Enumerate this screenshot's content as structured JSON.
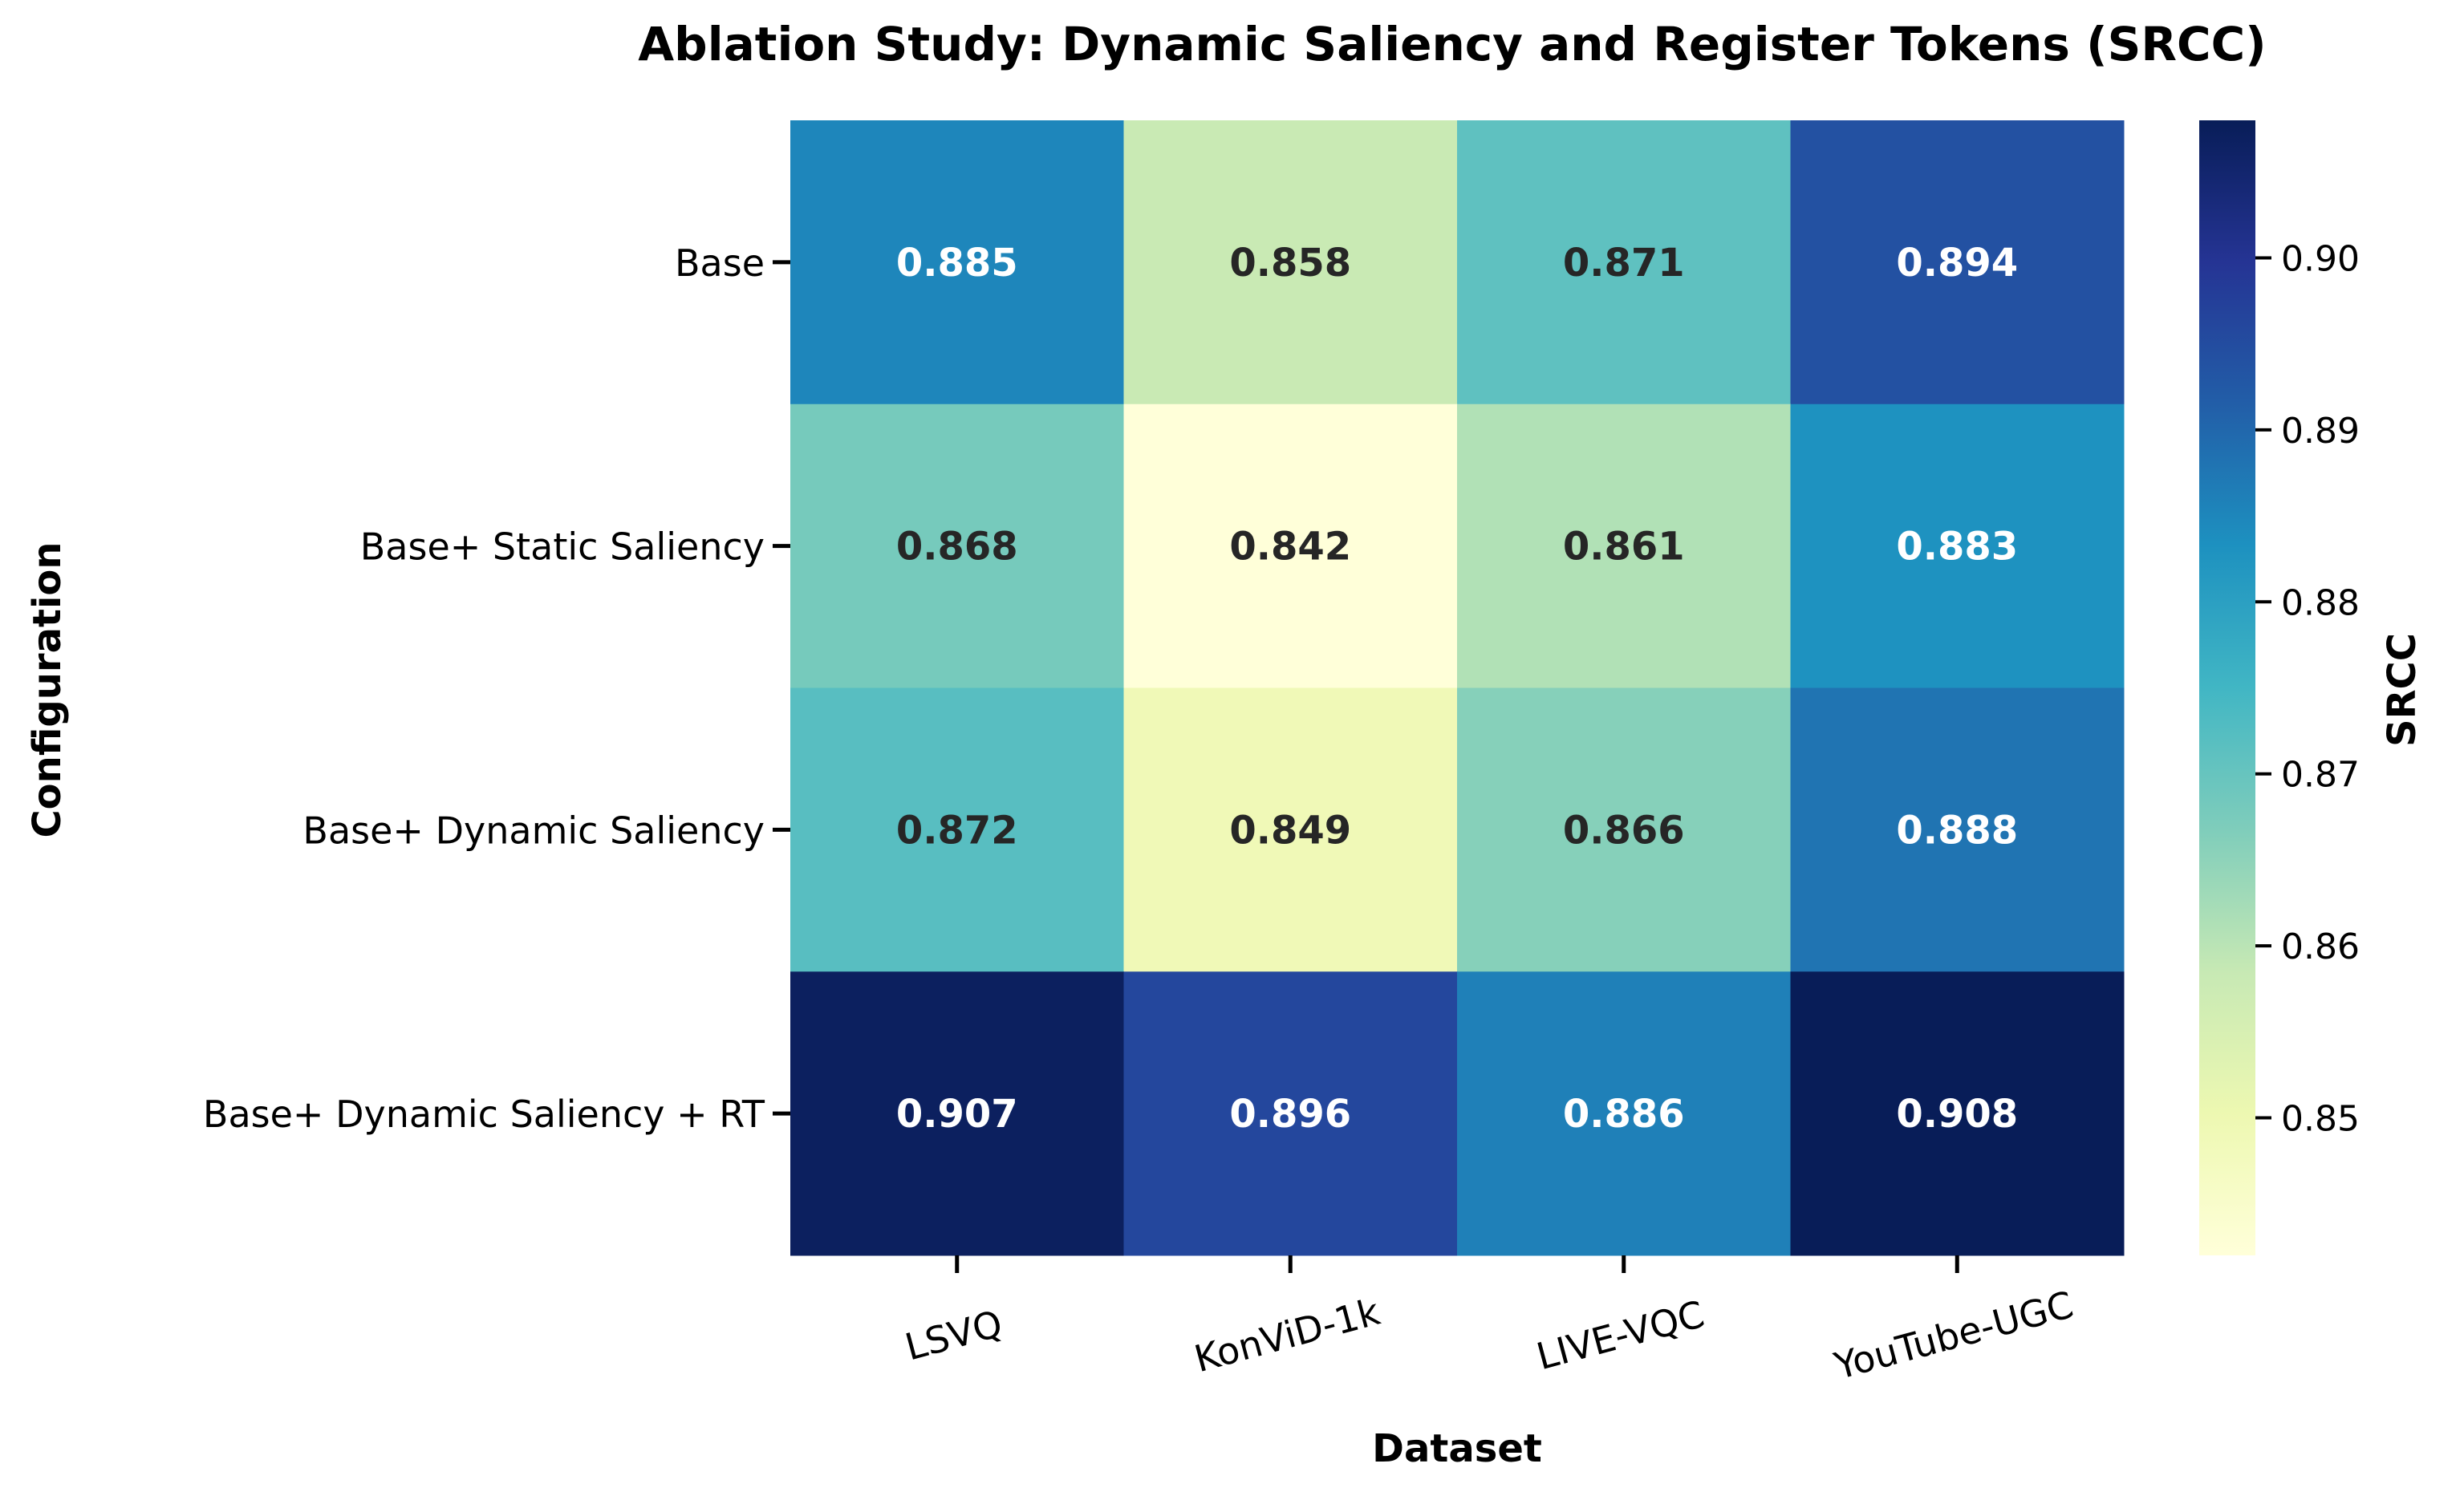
{
  "chart_data": {
    "type": "heatmap",
    "title": "Ablation Study: Dynamic Saliency and Register Tokens (SRCC)",
    "xlabel": "Dataset",
    "ylabel": "Configuration",
    "categories": [
      "LSVQ",
      "KonViD-1k",
      "LIVE-VQC",
      "YouTube-UGC"
    ],
    "rows": [
      "Base",
      "Base+ Static Saliency",
      "Base+ Dynamic Saliency",
      "Base+ Dynamic Saliency + RT"
    ],
    "values": [
      [
        0.885,
        0.858,
        0.871,
        0.894
      ],
      [
        0.868,
        0.842,
        0.861,
        0.883
      ],
      [
        0.872,
        0.849,
        0.866,
        0.888
      ],
      [
        0.907,
        0.896,
        0.886,
        0.908
      ]
    ],
    "value_labels": [
      [
        "0.885",
        "0.858",
        "0.871",
        "0.894"
      ],
      [
        "0.868",
        "0.842",
        "0.861",
        "0.883"
      ],
      [
        "0.872",
        "0.849",
        "0.866",
        "0.888"
      ],
      [
        "0.907",
        "0.896",
        "0.886",
        "0.908"
      ]
    ],
    "colorbar": {
      "label": "SRCC",
      "range": [
        0.842,
        0.908
      ],
      "ticks": [
        0.85,
        0.86,
        0.87,
        0.88,
        0.89,
        0.9
      ],
      "tick_labels": [
        "0.85",
        "0.86",
        "0.87",
        "0.88",
        "0.89",
        "0.90"
      ],
      "colormap": "YlGnBu",
      "stops": [
        "#ffffd9",
        "#edf8b1",
        "#c7e9b4",
        "#7fcdbb",
        "#41b6c4",
        "#1d91c0",
        "#225ea8",
        "#253494",
        "#081d58"
      ]
    },
    "annotation_colors": {
      "dark": "#262626",
      "light": "#ffffff"
    }
  }
}
